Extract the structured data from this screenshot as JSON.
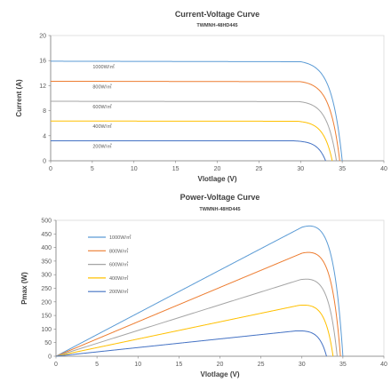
{
  "chart_data": [
    {
      "type": "line",
      "title": "Current-Voltage Curve",
      "subtitle": "TWMNH-48HD445",
      "xlabel": "Vlotlage (V)",
      "ylabel": "Current (A)",
      "xlim": [
        0,
        40
      ],
      "ylim": [
        0,
        20
      ],
      "xticks": [
        0,
        5,
        10,
        15,
        20,
        25,
        30,
        35,
        40
      ],
      "yticks": [
        0,
        4,
        8,
        12,
        16,
        20
      ],
      "grid": false,
      "legend": "inline labels",
      "series": [
        {
          "name": "1000W/㎡",
          "color": "#5b9bd5",
          "isc": 15.9,
          "voc": 35.0,
          "knee": 30.0
        },
        {
          "name": "800W/㎡",
          "color": "#ed7d31",
          "isc": 12.7,
          "voc": 34.7,
          "knee": 30.0
        },
        {
          "name": "600W/㎡",
          "color": "#a5a5a5",
          "isc": 9.5,
          "voc": 34.3,
          "knee": 29.8
        },
        {
          "name": "400W/㎡",
          "color": "#ffc000",
          "isc": 6.35,
          "voc": 33.8,
          "knee": 29.6
        },
        {
          "name": "200W/㎡",
          "color": "#4472c4",
          "isc": 3.2,
          "voc": 33.0,
          "knee": 29.2
        }
      ]
    },
    {
      "type": "line",
      "title": "Power-Voltage Curve",
      "subtitle": "TWMNH-48HD445",
      "xlabel": "Vlotlage (V)",
      "ylabel": "Pmax (W)",
      "xlim": [
        0,
        40
      ],
      "ylim": [
        0,
        500
      ],
      "xticks": [
        0,
        5,
        10,
        15,
        20,
        25,
        30,
        35,
        40
      ],
      "yticks": [
        0,
        50,
        100,
        150,
        200,
        250,
        300,
        350,
        400,
        450,
        500
      ],
      "grid": false,
      "legend": "top-left",
      "series": [
        {
          "name": "1000W/㎡",
          "color": "#5b9bd5",
          "isc": 15.9,
          "voc": 35.0,
          "knee": 30.0
        },
        {
          "name": "800W/㎡",
          "color": "#ed7d31",
          "isc": 12.7,
          "voc": 34.7,
          "knee": 30.0
        },
        {
          "name": "600W/㎡",
          "color": "#a5a5a5",
          "isc": 9.5,
          "voc": 34.3,
          "knee": 29.8
        },
        {
          "name": "400W/㎡",
          "color": "#ffc000",
          "isc": 6.35,
          "voc": 33.8,
          "knee": 29.6
        },
        {
          "name": "200W/㎡",
          "color": "#4472c4",
          "isc": 3.2,
          "voc": 33.0,
          "knee": 29.2
        }
      ]
    }
  ]
}
